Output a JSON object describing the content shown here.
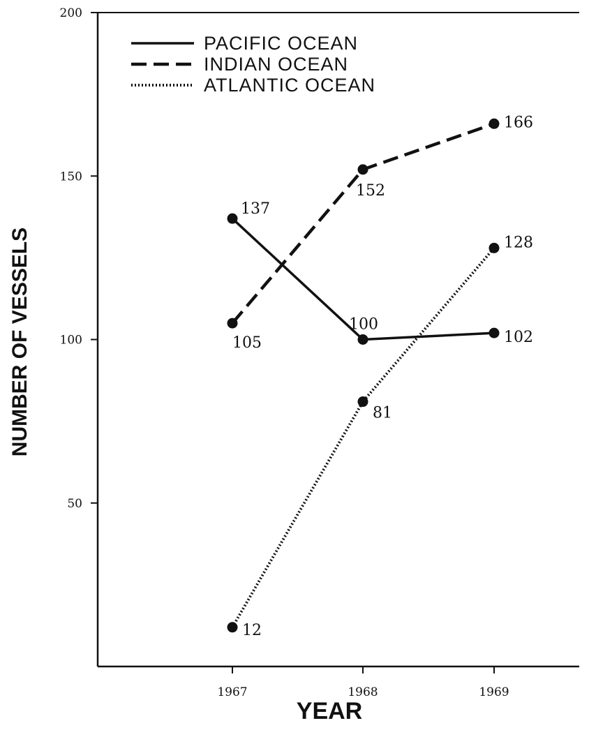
{
  "chart_data": {
    "type": "line",
    "xlabel": "YEAR",
    "ylabel": "NUMBER OF VESSELS",
    "ylim": [
      0,
      200
    ],
    "yticks": [
      {
        "value": 200,
        "label": "200"
      },
      {
        "value": 150,
        "label": "150"
      },
      {
        "value": 100,
        "label": "100"
      },
      {
        "value": 50,
        "label": "50"
      }
    ],
    "categories": [
      "1967",
      "1968",
      "1969"
    ],
    "legend_position": "top-left",
    "grid": false,
    "series": [
      {
        "name": "PACIFIC OCEAN",
        "style": "solid",
        "values": [
          137,
          100,
          102
        ],
        "labels": [
          "137",
          "100",
          "102"
        ]
      },
      {
        "name": "INDIAN OCEAN",
        "style": "dashed",
        "values": [
          105,
          152,
          166
        ],
        "labels": [
          "105",
          "152",
          "166"
        ]
      },
      {
        "name": "ATLANTIC OCEAN",
        "style": "dotted",
        "values": [
          12,
          81,
          128
        ],
        "labels": [
          "12",
          "81",
          "128"
        ]
      }
    ],
    "colors": {
      "ink": "#111111",
      "background": "#ffffff"
    }
  }
}
